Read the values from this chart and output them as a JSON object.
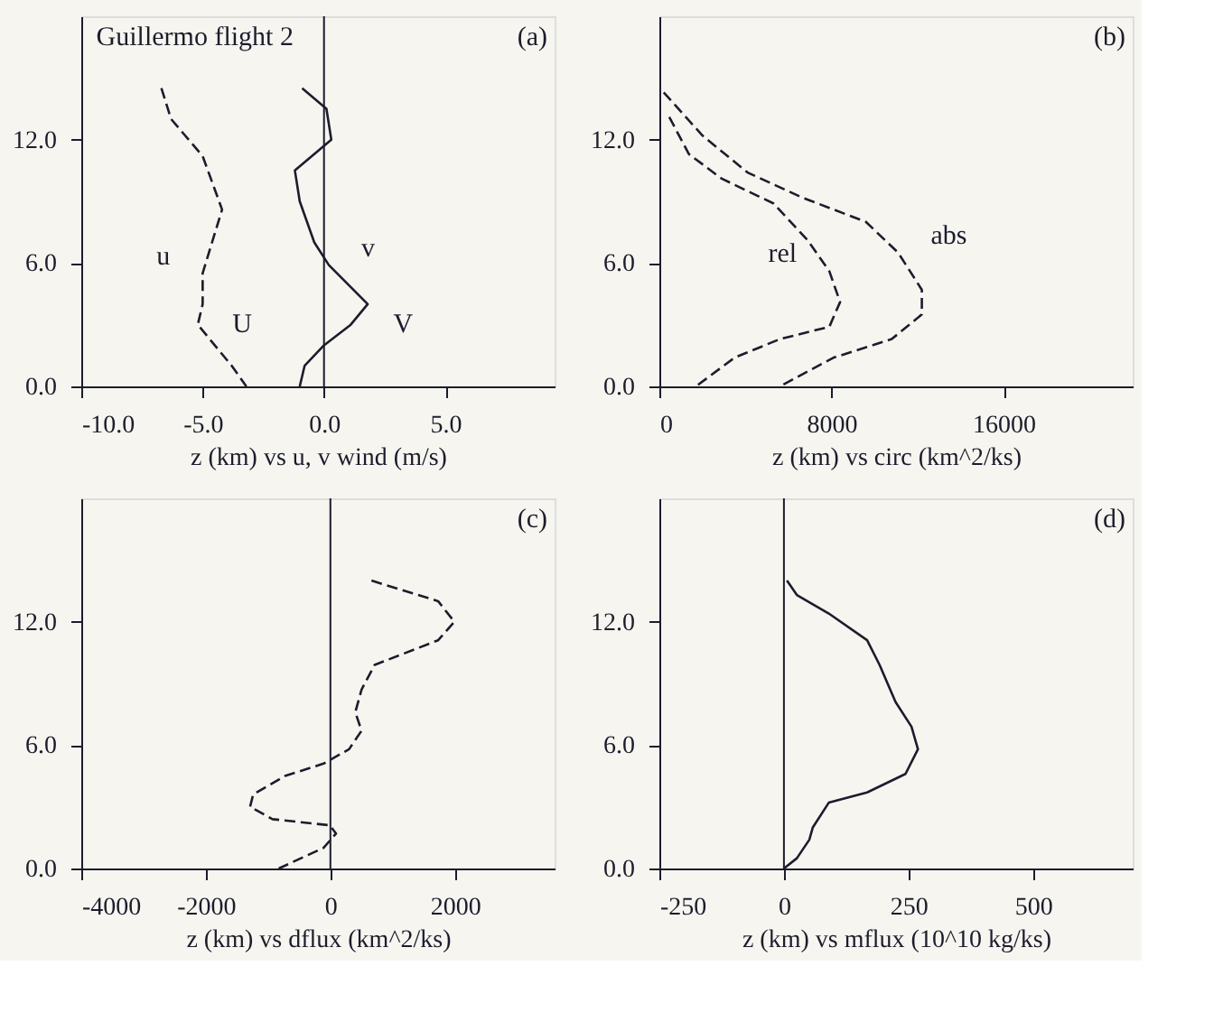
{
  "chart_data": [
    {
      "type": "line",
      "title": "Guillermo flight 2",
      "xlabel": "z (km) vs u, v wind (m/s)",
      "xlim": [
        -10,
        9.5
      ],
      "ylim": [
        0,
        18
      ],
      "xticks": [
        {
          "value": -10,
          "label": "-10.0"
        },
        {
          "value": -5,
          "label": "-5.0"
        },
        {
          "value": 0,
          "label": "0.0"
        },
        {
          "value": 5,
          "label": "5.0"
        }
      ],
      "yticks": [
        {
          "value": 0,
          "label": "0.0"
        },
        {
          "value": 6,
          "label": "6.0"
        },
        {
          "value": 12,
          "label": "12.0"
        }
      ],
      "ref_lines": [
        {
          "axis": "x",
          "value": 0
        }
      ],
      "series": [
        {
          "name": "u",
          "color": "#1c1c2c",
          "line_style": "dashed",
          "x": [
            -6.7,
            -6.3,
            -5.0,
            -4.2,
            -5.0,
            -5.0,
            -5.2,
            -3.8,
            -3.2
          ],
          "values": [
            14.5,
            13.0,
            11.2,
            8.6,
            5.5,
            4.0,
            3.0,
            1.0,
            0.0
          ]
        },
        {
          "name": "v",
          "color": "#1c1c2c",
          "line_style": "solid",
          "x": [
            -0.9,
            0.1,
            0.3,
            -1.2,
            -1.0,
            -0.4,
            0.2,
            1.8,
            1.1,
            0.0,
            -0.8,
            -1.0
          ],
          "values": [
            14.5,
            13.5,
            12.0,
            10.5,
            9.0,
            7.0,
            5.9,
            4.0,
            3.0,
            2.0,
            1.0,
            0.0
          ]
        }
      ],
      "annotations": [
        "(a)",
        "U",
        "V"
      ]
    },
    {
      "type": "line",
      "xlabel": "z (km) vs circ (km^2/ks)",
      "xlim": [
        0,
        22000
      ],
      "ylim": [
        0,
        18
      ],
      "xticks": [
        0,
        8000,
        16000
      ],
      "yticks": [
        {
          "value": 0,
          "label": "0.0"
        },
        {
          "value": 6,
          "label": "6.0"
        },
        {
          "value": 12,
          "label": "12.0"
        }
      ],
      "series": [
        {
          "name": "rel",
          "color": "#1c1c2c",
          "line_style": "dashed",
          "x": [
            460,
            1370,
            2900,
            5300,
            6900,
            7900,
            8400,
            7900,
            5600,
            3500,
            1700
          ],
          "values": [
            13.1,
            11.3,
            10.1,
            8.9,
            7.1,
            5.6,
            4.1,
            2.9,
            2.3,
            1.4,
            0.0
          ]
        },
        {
          "name": "abs",
          "color": "#1c1c2c",
          "line_style": "dashed",
          "x": [
            200,
            2000,
            4100,
            6600,
            9600,
            11100,
            12200,
            12200,
            10800,
            8100,
            5600
          ],
          "values": [
            14.3,
            12.2,
            10.4,
            9.2,
            8.0,
            6.5,
            4.7,
            3.5,
            2.3,
            1.4,
            0.0
          ]
        }
      ],
      "annotations": [
        "(b)"
      ]
    },
    {
      "type": "line",
      "xlabel": "z (km) vs dflux (km^2/ks)",
      "xlim": [
        -4000,
        3600
      ],
      "ylim": [
        0,
        18
      ],
      "xticks": [
        -4000,
        -2000,
        0,
        2000
      ],
      "yticks": [
        {
          "value": 0,
          "label": "0.0"
        },
        {
          "value": 6,
          "label": "6.0"
        },
        {
          "value": 12,
          "label": "12.0"
        }
      ],
      "ref_lines": [
        {
          "axis": "x",
          "value": 0
        }
      ],
      "series": [
        {
          "color": "#1c1c2c",
          "line_style": "dashed",
          "x": [
            660,
            1730,
            1990,
            1730,
            710,
            500,
            400,
            500,
            300,
            -110,
            -730,
            -1240,
            -1290,
            -930,
            -10,
            90,
            -110,
            -830
          ],
          "values": [
            14.0,
            13.0,
            12.0,
            11.1,
            9.9,
            8.7,
            7.6,
            6.7,
            5.8,
            5.1,
            4.5,
            3.6,
            3.0,
            2.4,
            2.1,
            1.7,
            1.0,
            0.0
          ]
        }
      ],
      "annotations": [
        "(c)"
      ]
    },
    {
      "type": "line",
      "xlabel": "z (km) vs mflux (10^10 kg/ks)",
      "xlim": [
        -250,
        700
      ],
      "ylim": [
        0,
        18
      ],
      "xticks": [
        -250,
        0,
        250,
        500
      ],
      "yticks": [
        {
          "value": 0,
          "label": "0.0"
        },
        {
          "value": 6,
          "label": "6.0"
        },
        {
          "value": 12,
          "label": "12.0"
        }
      ],
      "ref_lines": [
        {
          "axis": "x",
          "value": 0
        }
      ],
      "series": [
        {
          "color": "#1c1c2c",
          "line_style": "solid",
          "x": [
            6,
            26,
            90,
            167,
            192,
            224,
            256,
            269,
            244,
            167,
            90,
            58,
            51,
            26,
            0
          ],
          "values": [
            14.0,
            13.3,
            12.4,
            11.1,
            9.9,
            8.1,
            6.9,
            5.8,
            4.6,
            3.7,
            3.2,
            2.0,
            1.4,
            0.5,
            0.0
          ]
        }
      ],
      "annotations": [
        "(d)"
      ]
    }
  ]
}
